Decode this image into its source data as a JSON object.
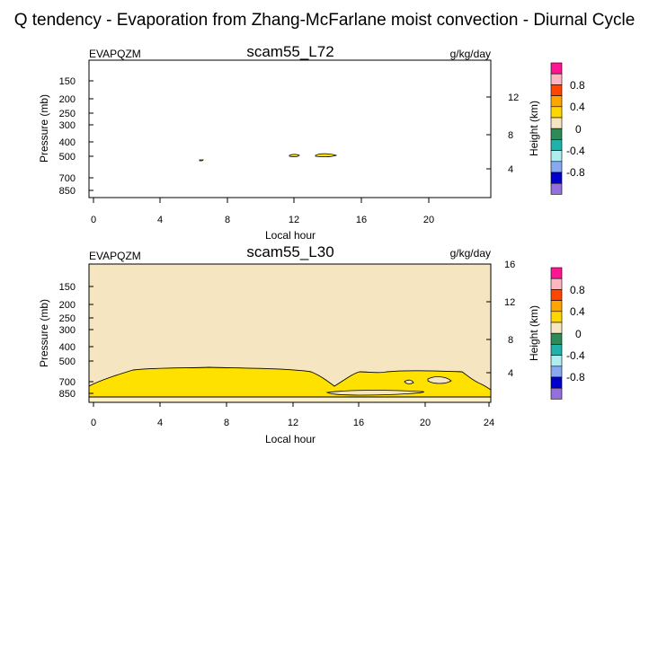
{
  "title": "Q tendency - Evaporation from Zhang-McFarlane moist convection - Diurnal Cycle",
  "colors": {
    "background_fill": "#f5e6c1",
    "zero_band": "#fbf0c8",
    "evap_positive": "#ffe100",
    "frame": "#000000"
  },
  "chart_data": [
    {
      "type": "contour",
      "title": "scam55_L72",
      "variable": "EVAPQZM",
      "units": "g/kg/day",
      "xlabel": "Local hour",
      "ylabel": "Pressure (mb)",
      "ylabel_right": "Height (km)",
      "x_ticks": [
        "0",
        "4",
        "8",
        "12",
        "16",
        "20"
      ],
      "y_ticks": [
        "150",
        "200",
        "250",
        "300",
        "400",
        "500",
        "700",
        "850"
      ],
      "y_right_ticks": [
        "12",
        "8",
        "4"
      ],
      "xlim": [
        -0.5,
        23.5
      ],
      "background": "white",
      "contour_regions": [
        {
          "level": "0.2",
          "hours": [
            12.0,
            12.0
          ],
          "pressure_mb": [
            490,
            490
          ]
        },
        {
          "level": "0.2",
          "hours": [
            13.5,
            14.2
          ],
          "pressure_mb": [
            485,
            490
          ]
        },
        {
          "level": "0",
          "hours": [
            6.5,
            6.5
          ],
          "pressure_mb": [
            520,
            520
          ]
        }
      ],
      "colorbar": {
        "labels": [
          "0.8",
          "0.4",
          "0",
          "-0.4",
          "-0.8"
        ],
        "colors": [
          "#ff1493",
          "#ffb6c1",
          "#ff4500",
          "#ffa500",
          "#ffd700",
          "#f5e6c1",
          "#2e8b57",
          "#20b2aa",
          "#afeeee",
          "#87a9f0",
          "#0000cd",
          "#9370db"
        ]
      }
    },
    {
      "type": "contour",
      "title": "scam55_L30",
      "variable": "EVAPQZM",
      "units": "g/kg/day",
      "xlabel": "Local hour",
      "ylabel": "Pressure (mb)",
      "ylabel_right": "Height (km)",
      "x_ticks": [
        "0",
        "4",
        "8",
        "12",
        "16",
        "20",
        "24"
      ],
      "y_ticks": [
        "150",
        "200",
        "250",
        "300",
        "400",
        "500",
        "700",
        "850"
      ],
      "y_right_ticks": [
        "16",
        "12",
        "8",
        "4"
      ],
      "xlim": [
        -0.5,
        24
      ],
      "background": "tan",
      "contour_regions": [
        {
          "level": "0.2",
          "hours": [
            -0.5,
            24
          ],
          "pressure_mb": [
            620,
            870
          ],
          "description_level": "positive evaporation layer"
        }
      ],
      "colorbar": {
        "labels": [
          "0.8",
          "0.4",
          "0",
          "-0.4",
          "-0.8"
        ],
        "colors": [
          "#ff1493",
          "#ffb6c1",
          "#ff4500",
          "#ffa500",
          "#ffd700",
          "#f5e6c1",
          "#2e8b57",
          "#20b2aa",
          "#afeeee",
          "#87a9f0",
          "#0000cd",
          "#9370db"
        ]
      }
    }
  ]
}
